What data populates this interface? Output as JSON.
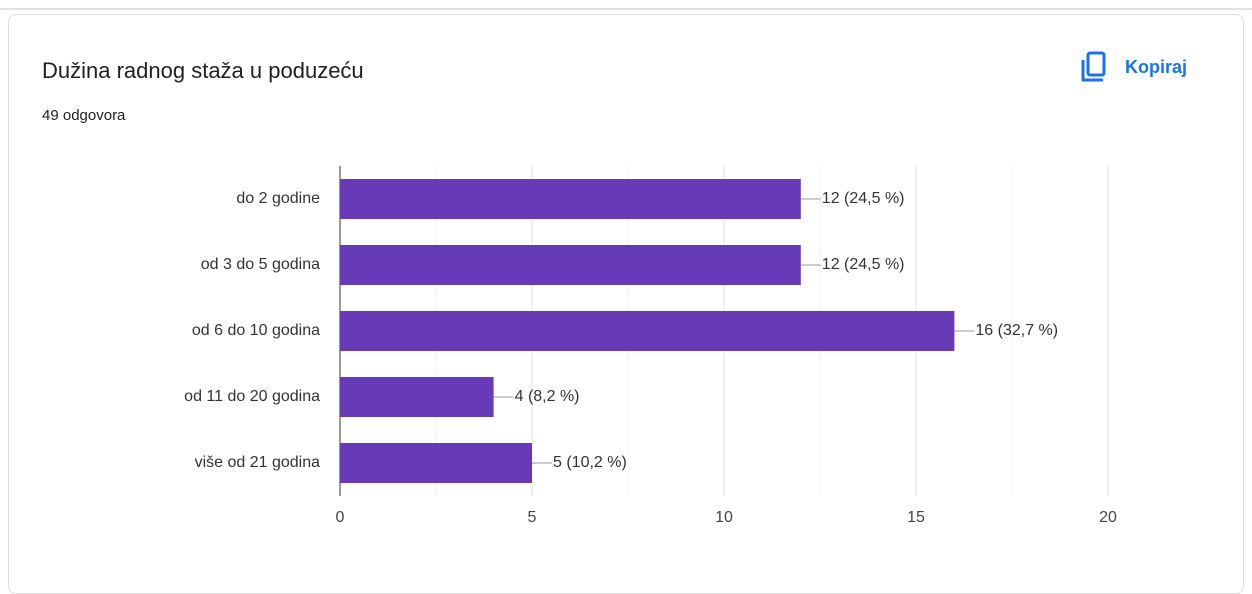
{
  "chart_data": {
    "type": "bar",
    "orientation": "horizontal",
    "title": "Dužina radnog staža u poduzeću",
    "subtitle": "49 odgovora",
    "button": "Kopiraj",
    "categories": [
      "do 2 godine",
      "od 3 do 5 godina",
      "od 6 do 10 godina",
      "od 11 do 20 godina",
      "više od 21 godina"
    ],
    "values": [
      12,
      12,
      16,
      4,
      5
    ],
    "value_labels": [
      "12 (24,5 %)",
      "12 (24,5 %)",
      "16 (32,7 %)",
      "4 (8,2 %)",
      "5 (10,2 %)"
    ],
    "color": "#673ab7",
    "xlim": [
      0,
      20
    ],
    "xticks": [
      0,
      5,
      10,
      15,
      20
    ],
    "xminor": [
      2.5,
      7.5,
      12.5,
      17.5
    ],
    "grid": true
  }
}
